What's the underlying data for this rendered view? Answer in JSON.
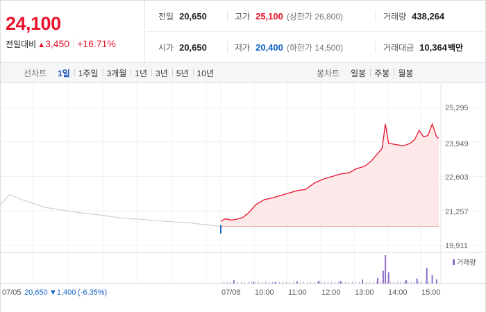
{
  "quote": {
    "price": "24,100",
    "change_label": "전일대비",
    "change_amount": "3,450",
    "change_percent": "+16.71%",
    "up_symbol": "▲"
  },
  "stats": {
    "prev_close": {
      "label": "전일",
      "value": "20,650"
    },
    "high": {
      "label": "고가",
      "value": "25,100",
      "sub": "(상한가 26,800)"
    },
    "volume": {
      "label": "거래량",
      "value": "438,264"
    },
    "open": {
      "label": "시가",
      "value": "20,650"
    },
    "low": {
      "label": "저가",
      "value": "20,400",
      "sub": "(하한가 14,500)"
    },
    "trade_value": {
      "label": "거래대금",
      "value": "10,364",
      "unit": "백만"
    }
  },
  "period_tabs": {
    "title": "선차트",
    "items": [
      "1일",
      "1주일",
      "3개월",
      "1년",
      "3년",
      "5년",
      "10년"
    ],
    "active": "1일"
  },
  "candle_tabs": {
    "title": "봉차트",
    "items": [
      "일봉",
      "주봉",
      "월봉"
    ]
  },
  "colors": {
    "up": "#e8122d",
    "down": "#1163c4",
    "area_fill": "#fde8ea",
    "prev_line": "#cfcfcf",
    "volume_bar": "#8c6ec9"
  },
  "chart_data": {
    "type": "line",
    "y_ticks": [
      "25,295",
      "23,949",
      "22,603",
      "21,257",
      "19,911"
    ],
    "ylim": [
      19911,
      25295
    ],
    "reference_price": 20650,
    "volume_legend": "거래량",
    "bottom_info": {
      "date": "07/05",
      "close": "20,650",
      "change": "▼1,400",
      "change_percent": "(-6.35%)"
    },
    "x_labels": [
      "07/08",
      "10:00",
      "11:00",
      "12:00",
      "13:00",
      "14:00",
      "15:00"
    ],
    "previous_day": [
      [
        0,
        21500
      ],
      [
        0.04,
        21900
      ],
      [
        0.08,
        21750
      ],
      [
        0.13,
        21600
      ],
      [
        0.2,
        21400
      ],
      [
        0.27,
        21300
      ],
      [
        0.35,
        21200
      ],
      [
        0.45,
        21100
      ],
      [
        0.55,
        20980
      ],
      [
        0.65,
        20920
      ],
      [
        0.75,
        20850
      ],
      [
        0.85,
        20800
      ],
      [
        0.93,
        20720
      ],
      [
        1.0,
        20650
      ]
    ],
    "today": [
      [
        0,
        20850
      ],
      [
        0.02,
        20950
      ],
      [
        0.05,
        20900
      ],
      [
        0.08,
        20950
      ],
      [
        0.1,
        21000
      ],
      [
        0.13,
        21200
      ],
      [
        0.16,
        21500
      ],
      [
        0.2,
        21700
      ],
      [
        0.23,
        21750
      ],
      [
        0.27,
        21850
      ],
      [
        0.31,
        21950
      ],
      [
        0.35,
        22050
      ],
      [
        0.39,
        22100
      ],
      [
        0.43,
        22350
      ],
      [
        0.47,
        22500
      ],
      [
        0.51,
        22600
      ],
      [
        0.55,
        22700
      ],
      [
        0.59,
        22750
      ],
      [
        0.62,
        22900
      ],
      [
        0.66,
        23000
      ],
      [
        0.69,
        23200
      ],
      [
        0.72,
        23500
      ],
      [
        0.74,
        23700
      ],
      [
        0.755,
        24650
      ],
      [
        0.77,
        23900
      ],
      [
        0.8,
        23850
      ],
      [
        0.84,
        23800
      ],
      [
        0.87,
        23900
      ],
      [
        0.89,
        24050
      ],
      [
        0.91,
        24400
      ],
      [
        0.93,
        24150
      ],
      [
        0.95,
        24200
      ],
      [
        0.97,
        24650
      ],
      [
        0.99,
        24150
      ],
      [
        1.0,
        24100
      ]
    ],
    "volume_today": [
      [
        0.06,
        12
      ],
      [
        0.15,
        6
      ],
      [
        0.25,
        5
      ],
      [
        0.35,
        8
      ],
      [
        0.45,
        10
      ],
      [
        0.55,
        9
      ],
      [
        0.65,
        14
      ],
      [
        0.72,
        20
      ],
      [
        0.745,
        45
      ],
      [
        0.755,
        100
      ],
      [
        0.77,
        40
      ],
      [
        0.85,
        12
      ],
      [
        0.9,
        18
      ],
      [
        0.945,
        55
      ],
      [
        0.97,
        30
      ],
      [
        0.99,
        15
      ]
    ]
  }
}
